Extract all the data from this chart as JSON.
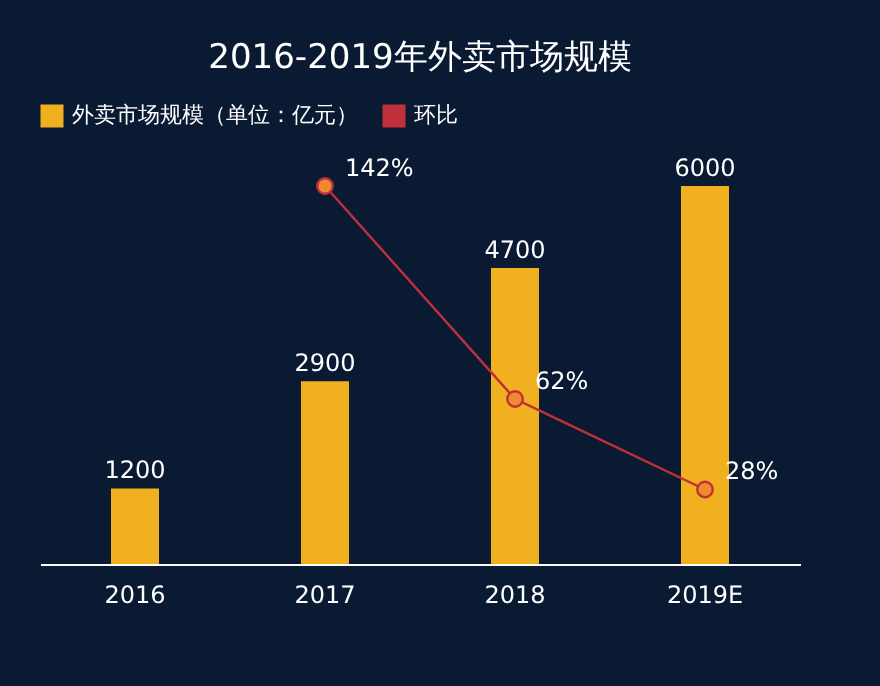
{
  "chart_data": {
    "type": "bar",
    "title": "2016-2019年外卖市场规模",
    "categories": [
      "2016",
      "2017",
      "2018",
      "2019E"
    ],
    "series": [
      {
        "name": "外卖市场规模（单位：亿元）",
        "color": "#f0b020",
        "values": [
          1200,
          2900,
          4700,
          6000
        ],
        "value_labels": [
          "1200",
          "2900",
          "4700",
          "6000"
        ]
      },
      {
        "name": "环比",
        "type": "line",
        "axis": "y2",
        "color": "#c0303a",
        "marker": "circle",
        "values": [
          null,
          142,
          62,
          28
        ],
        "value_labels": [
          null,
          "142%",
          "62%",
          "28%"
        ]
      }
    ],
    "grid": false,
    "legend": "top",
    "tick_labels": "x"
  }
}
